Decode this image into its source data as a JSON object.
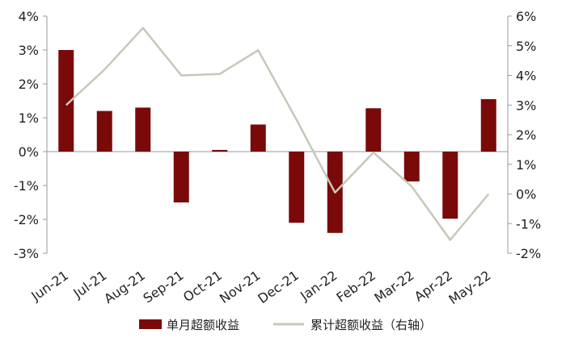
{
  "chart_data": {
    "type": "bar",
    "categories": [
      "Jun-21",
      "Jul-21",
      "Aug-21",
      "Sep-21",
      "Oct-21",
      "Nov-21",
      "Dec-21",
      "Jan-22",
      "Feb-22",
      "Mar-22",
      "Apr-22",
      "May-22"
    ],
    "series": [
      {
        "name": "单月超额收益",
        "type": "bar",
        "axis": "left",
        "color": "#7a0a0a",
        "values": [
          3.0,
          1.2,
          1.3,
          -1.5,
          0.05,
          0.8,
          -2.1,
          -2.4,
          1.28,
          -0.88,
          -1.98,
          1.55
        ]
      },
      {
        "name": "累计超额收益（右轴）",
        "type": "line",
        "axis": "right",
        "color": "#c5c8b8",
        "values": [
          3.0,
          4.2,
          5.6,
          4.0,
          4.05,
          4.85,
          2.5,
          0.05,
          1.4,
          0.25,
          -1.55,
          0.0
        ]
      }
    ],
    "y_left": {
      "ylim": [
        -3,
        4
      ],
      "ticks": [
        4,
        3,
        2,
        1,
        0,
        -1,
        -2,
        -3
      ],
      "tick_labels": [
        "4%",
        "3%",
        "2%",
        "1%",
        "0%",
        "-1%",
        "-2%",
        "-3%"
      ]
    },
    "y_right": {
      "ylim": [
        -2,
        6
      ],
      "ticks": [
        6,
        5,
        4,
        3,
        2,
        1,
        0,
        -1,
        -2
      ],
      "tick_labels": [
        "6%",
        "5%",
        "4%",
        "3%",
        "2%",
        "1%",
        "0%",
        "-1%",
        "-2%"
      ]
    },
    "grid": false,
    "legend": "bottom-center",
    "title": "",
    "xlabel": "",
    "ylabel": ""
  }
}
